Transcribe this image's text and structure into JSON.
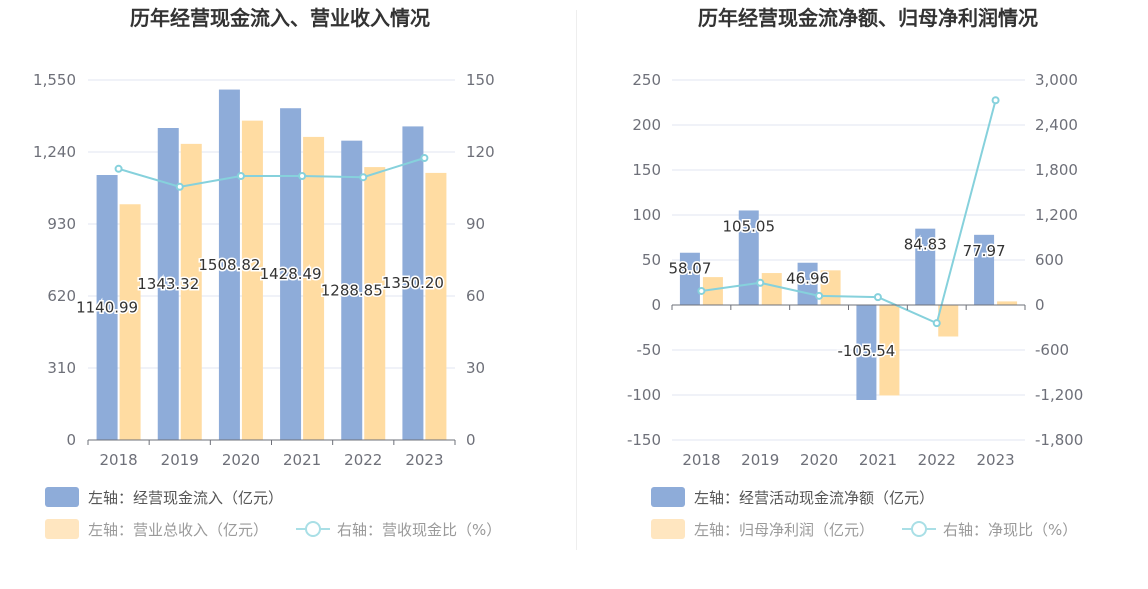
{
  "colors": {
    "inflow": "#8eacd9",
    "revenue": "#ffdca2",
    "line": "#86d1dc",
    "grid": "#e0e6f1",
    "axis": "#6e7079",
    "divider": "#eeeeee"
  },
  "chart_data": [
    {
      "type": "bar",
      "title": "历年经营现金流入、营业收入情况",
      "categories": [
        "2018",
        "2019",
        "2020",
        "2021",
        "2022",
        "2023"
      ],
      "left_axis": {
        "min": 0,
        "max": 1550,
        "ticks": [
          0,
          310,
          620,
          930,
          "1,240",
          "1,550"
        ]
      },
      "right_axis": {
        "min": 0,
        "max": 150,
        "ticks": [
          0,
          30,
          60,
          90,
          120,
          150
        ]
      },
      "series": [
        {
          "name": "左轴：经营现金流入（亿元）",
          "axis": "left",
          "kind": "bar",
          "values": [
            1140.99,
            1343.32,
            1508.82,
            1428.49,
            1288.85,
            1350.2
          ],
          "labels": [
            "1140.99",
            "1343.32",
            "1508.82",
            "1428.49",
            "1288.85",
            "1350.20"
          ]
        },
        {
          "name": "左轴：营业总收入（亿元）",
          "axis": "left",
          "kind": "bar",
          "values": [
            1015,
            1275,
            1375,
            1305,
            1175,
            1150
          ]
        },
        {
          "name": "右轴：营收现金比（%）",
          "axis": "right",
          "kind": "line",
          "values": [
            113,
            105.5,
            110,
            110,
            109.5,
            117.5
          ]
        }
      ]
    },
    {
      "type": "bar",
      "title": "历年经营现金流净额、归母净利润情况",
      "categories": [
        "2018",
        "2019",
        "2020",
        "2021",
        "2022",
        "2023"
      ],
      "left_axis": {
        "min": -150,
        "max": 250,
        "ticks": [
          -150,
          -100,
          -50,
          0,
          50,
          100,
          150,
          200,
          250
        ]
      },
      "right_axis": {
        "min": -1800,
        "max": 3000,
        "ticks": [
          "-1,800",
          "-1,200",
          "-600",
          0,
          600,
          "1,200",
          "1,800",
          "2,400",
          "3,000"
        ]
      },
      "series": [
        {
          "name": "左轴：经营活动现金流净额（亿元）",
          "axis": "left",
          "kind": "bar",
          "values": [
            58.07,
            105.05,
            46.96,
            -105.54,
            84.83,
            77.97
          ],
          "labels": [
            "58.07",
            "105.05",
            "46.96",
            "-105.54",
            "84.83",
            "77.97"
          ]
        },
        {
          "name": "左轴：归母净利润（亿元）",
          "axis": "left",
          "kind": "bar",
          "values": [
            31,
            35.5,
            38.5,
            -100.5,
            -35,
            4
          ]
        },
        {
          "name": "右轴：净现比（%）",
          "axis": "right",
          "kind": "line",
          "values": [
            187,
            296,
            122,
            105,
            -242,
            2730
          ]
        }
      ]
    }
  ]
}
